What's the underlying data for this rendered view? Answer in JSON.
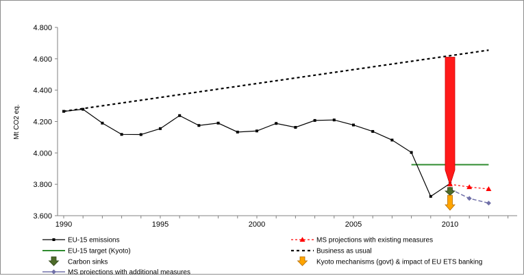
{
  "chart_data": {
    "type": "line",
    "ylabel": "Mt CO2 eq.",
    "xlim": [
      1990,
      2013
    ],
    "ylim": [
      3600,
      4800
    ],
    "x_ticks": [
      1990,
      1995,
      2000,
      2005,
      2010
    ],
    "x_tick_labels": [
      "1990",
      "1995",
      "2000",
      "2005",
      "2010"
    ],
    "y_ticks": [
      3600,
      3800,
      4000,
      4200,
      4400,
      4600,
      4800
    ],
    "y_tick_labels": [
      "3.600",
      "3.800",
      "4.000",
      "4.200",
      "4.400",
      "4.600",
      "4.800"
    ],
    "grid": false,
    "colors": {
      "emissions": "#000000",
      "business_as_usual": "#000000",
      "kyoto_target": "#2e8b2e",
      "existing_measures": "#ff0000",
      "additional_measures": "#7070a8",
      "reduction_arrow": "#ff1a1a",
      "carbon_sinks": "#4d6b2a",
      "kyoto_mechanisms": "#ffa500"
    },
    "series": {
      "emissions": {
        "name": "EU-15 emissions",
        "x": [
          1990,
          1991,
          1992,
          1993,
          1994,
          1995,
          1996,
          1997,
          1998,
          1999,
          2000,
          2001,
          2002,
          2003,
          2004,
          2005,
          2006,
          2007,
          2008,
          2009,
          2010
        ],
        "y": [
          4265,
          4278,
          4190,
          4118,
          4117,
          4155,
          4238,
          4175,
          4190,
          4133,
          4140,
          4188,
          4163,
          4207,
          4210,
          4178,
          4137,
          4082,
          4003,
          3723,
          3805
        ]
      },
      "business_as_usual": {
        "name": "Business as usual",
        "x": [
          1990,
          2012
        ],
        "y": [
          4265,
          4655
        ]
      },
      "kyoto_target": {
        "name": "EU-15 target (Kyoto)",
        "x": [
          2008,
          2012
        ],
        "y": [
          3925,
          3925
        ]
      },
      "existing_measures": {
        "name": "MS projections with existing measures",
        "x": [
          2010,
          2011,
          2012
        ],
        "y": [
          3800,
          3783,
          3770
        ]
      },
      "additional_measures": {
        "name": "MS projections with additional measures",
        "x": [
          2010,
          2011,
          2012
        ],
        "y": [
          3770,
          3710,
          3680
        ]
      }
    },
    "arrows": {
      "reduction": {
        "x": 2010,
        "from": 4610,
        "to": 3795
      },
      "carbon_sinks": {
        "name": "Carbon sinks",
        "x": 2010,
        "from": 3780,
        "to": 3730
      },
      "kyoto_mechanisms": {
        "name": "Kyoto mechanisms (govt) & impact of EU ETS banking",
        "x": 2010,
        "from": 3730,
        "to": 3635
      }
    },
    "legend": {
      "placement": "bottom",
      "items": [
        {
          "key": "emissions",
          "label": "EU-15 emissions"
        },
        {
          "key": "existing_measures",
          "label": "MS projections with existing measures"
        },
        {
          "key": "kyoto_target",
          "label": "EU-15 target (Kyoto)"
        },
        {
          "key": "business_as_usual",
          "label": "Business as usual"
        },
        {
          "key": "carbon_sinks",
          "label": "Carbon sinks"
        },
        {
          "key": "kyoto_mechanisms",
          "label": "Kyoto mechanisms (govt) & impact of EU ETS banking"
        },
        {
          "key": "additional_measures",
          "label": "MS projections with additional measures"
        }
      ]
    }
  }
}
